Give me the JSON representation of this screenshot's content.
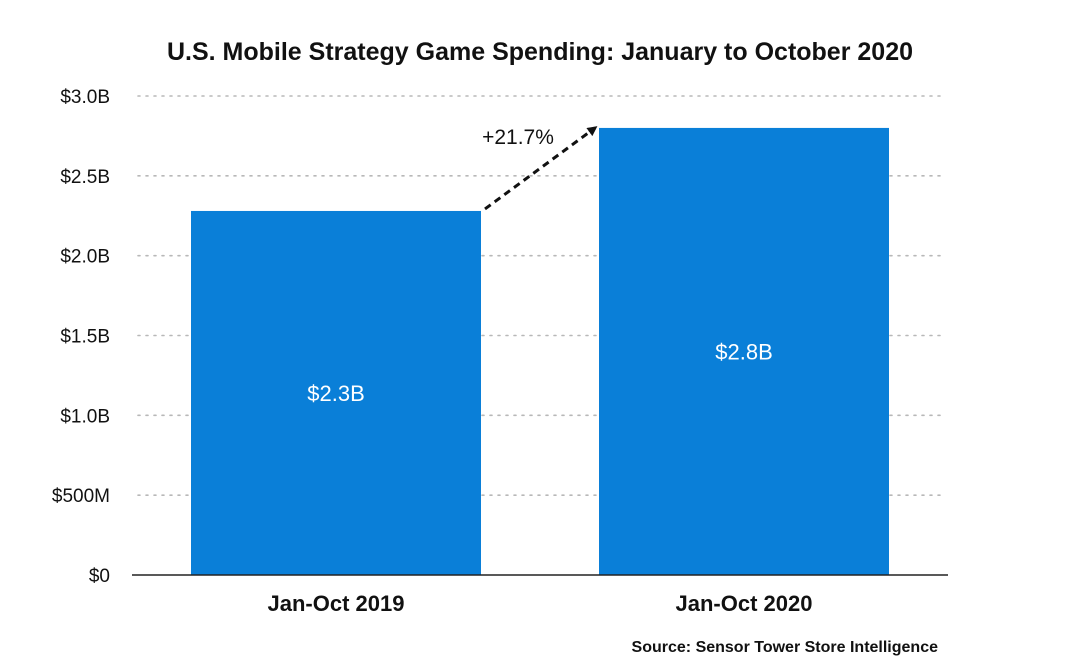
{
  "chart_data": {
    "type": "bar",
    "title": "U.S. Mobile Strategy Game Spending: January to October 2020",
    "categories": [
      "Jan-Oct 2019",
      "Jan-Oct 2020"
    ],
    "values": [
      2.28,
      2.8
    ],
    "value_labels": [
      "$2.3B",
      "$2.8B"
    ],
    "unit": "USD billions",
    "ylim": [
      0,
      3.0
    ],
    "yticks": [
      0,
      0.5,
      1.0,
      1.5,
      2.0,
      2.5,
      3.0
    ],
    "ytick_labels": [
      "$0",
      "$500M",
      "$1.0B",
      "$1.5B",
      "$2.0B",
      "$2.5B",
      "$3.0B"
    ],
    "xlabel": "",
    "ylabel": "",
    "grid": true,
    "bar_color": "#0a7fd8",
    "annotation": {
      "text": "+21.7%",
      "from_category": "Jan-Oct 2019",
      "to_category": "Jan-Oct 2020",
      "style": "dashed-arrow"
    },
    "source": "Source: Sensor Tower Store Intelligence"
  }
}
